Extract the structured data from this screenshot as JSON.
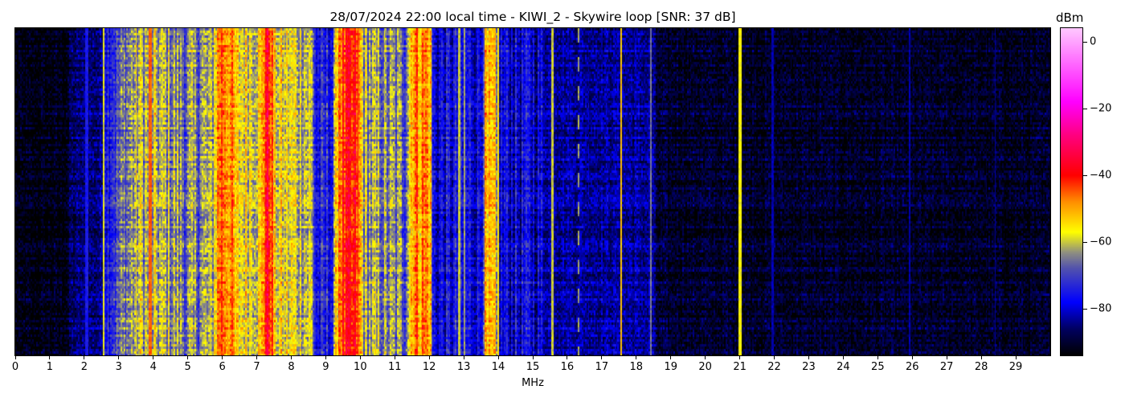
{
  "chart_data": {
    "type": "heatmap",
    "title": "28/07/2024 22:00 local time - KIWI_2 - Skywire loop [SNR: 37 dB]",
    "xlabel": "MHz",
    "xlim": [
      0,
      30
    ],
    "xticks": [
      "0",
      "1",
      "2",
      "3",
      "4",
      "5",
      "6",
      "7",
      "8",
      "9",
      "10",
      "11",
      "12",
      "13",
      "14",
      "15",
      "16",
      "17",
      "18",
      "19",
      "20",
      "21",
      "22",
      "23",
      "24",
      "25",
      "26",
      "27",
      "28",
      "29"
    ],
    "colorbar": {
      "label": "dBm",
      "range": [
        -94,
        4
      ],
      "ticks": [
        0,
        -20,
        -40,
        -60,
        -80
      ],
      "tick_labels": [
        "0",
        "−20",
        "−40",
        "−60",
        "−80"
      ],
      "colormap": [
        [
          -94,
          "#000000"
        ],
        [
          -86,
          "#000060"
        ],
        [
          -78,
          "#0000ff"
        ],
        [
          -68,
          "#5050b0"
        ],
        [
          -63,
          "#909080"
        ],
        [
          -57,
          "#ffff00"
        ],
        [
          -48,
          "#ff9000"
        ],
        [
          -40,
          "#ff0000"
        ],
        [
          -28,
          "#ff0080"
        ],
        [
          -18,
          "#ff00ff"
        ],
        [
          4,
          "#ffc8ff"
        ]
      ]
    },
    "band_levels_dbm": [
      [
        0.0,
        -93
      ],
      [
        1.5,
        -92
      ],
      [
        1.6,
        -86
      ],
      [
        2.5,
        -84
      ],
      [
        2.6,
        -72
      ],
      [
        3.2,
        -66
      ],
      [
        3.5,
        -60
      ],
      [
        4.5,
        -62
      ],
      [
        5.0,
        -66
      ],
      [
        5.7,
        -62
      ],
      [
        5.9,
        -44
      ],
      [
        6.2,
        -46
      ],
      [
        6.4,
        -56
      ],
      [
        7.1,
        -56
      ],
      [
        7.25,
        -38
      ],
      [
        7.4,
        -40
      ],
      [
        7.5,
        -57
      ],
      [
        8.6,
        -60
      ],
      [
        8.7,
        -76
      ],
      [
        9.2,
        -74
      ],
      [
        9.35,
        -43
      ],
      [
        9.9,
        -42
      ],
      [
        10.1,
        -62
      ],
      [
        11.3,
        -66
      ],
      [
        11.5,
        -47
      ],
      [
        12.0,
        -48
      ],
      [
        12.1,
        -78
      ],
      [
        13.5,
        -76
      ],
      [
        13.6,
        -55
      ],
      [
        13.9,
        -56
      ],
      [
        14.0,
        -78
      ],
      [
        15.2,
        -79
      ],
      [
        15.4,
        -82
      ],
      [
        18.5,
        -83
      ],
      [
        18.6,
        -90
      ],
      [
        30.0,
        -91
      ]
    ],
    "narrow_carriers_dbm": [
      [
        2.05,
        -75
      ],
      [
        2.55,
        -58
      ],
      [
        3.9,
        -45
      ],
      [
        12.85,
        -60
      ],
      [
        13.0,
        -62
      ],
      [
        14.0,
        -55
      ],
      [
        15.55,
        -60
      ],
      [
        16.3,
        -62
      ],
      [
        17.55,
        -52
      ],
      [
        18.4,
        -65
      ],
      [
        21.0,
        -57
      ],
      [
        21.95,
        -82
      ],
      [
        25.9,
        -82
      ],
      [
        28.4,
        -83
      ]
    ]
  }
}
